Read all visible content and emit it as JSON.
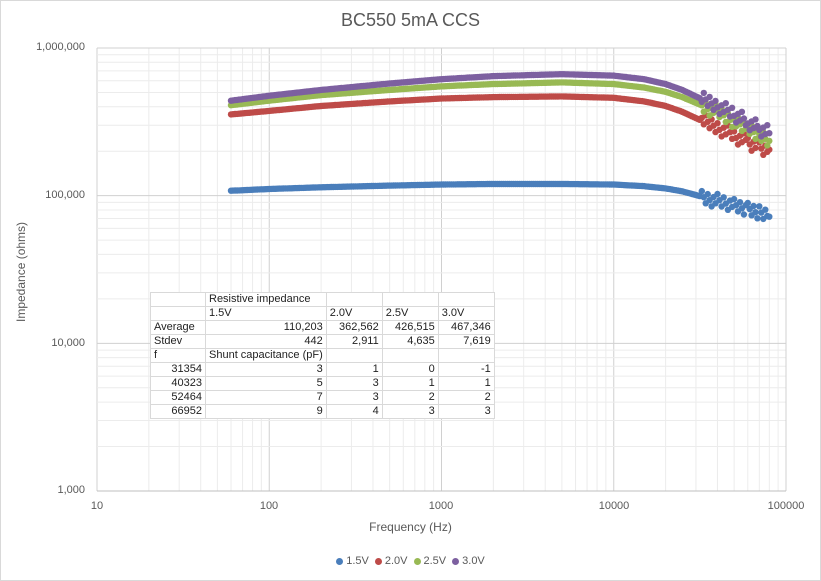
{
  "chart_data": {
    "type": "scatter",
    "title": "BC550 5mA CCS",
    "xlabel": "Frequency (Hz)",
    "ylabel": "Impedance (ohms)",
    "x_scale": "log",
    "y_scale": "log",
    "xlim": [
      10,
      100000
    ],
    "ylim": [
      1000,
      1000000
    ],
    "x_tick_labels": [
      "10",
      "100",
      "1000",
      "10000",
      "100000"
    ],
    "y_tick_labels": [
      "1,000",
      "10,000",
      "100,000",
      "1,000,000"
    ],
    "grid": true,
    "legend_position": "bottom",
    "series": [
      {
        "name": "1.5V",
        "color": "#4a7ebb",
        "x": [
          60,
          100,
          200,
          500,
          1000,
          2000,
          5000,
          10000,
          15000,
          20000,
          25000,
          30000,
          40000,
          50000,
          60000,
          70000,
          80000
        ],
        "y": [
          108000,
          111000,
          114000,
          117000,
          119000,
          120000,
          120000,
          119000,
          116000,
          112000,
          107000,
          101000,
          92000,
          85000,
          80000,
          76000,
          72000
        ]
      },
      {
        "name": "2.0V",
        "color": "#be4b48",
        "x": [
          60,
          100,
          200,
          500,
          1000,
          2000,
          5000,
          10000,
          15000,
          20000,
          25000,
          30000,
          40000,
          50000,
          60000,
          70000,
          80000
        ],
        "y": [
          355000,
          375000,
          405000,
          435000,
          455000,
          465000,
          470000,
          460000,
          435000,
          405000,
          370000,
          335000,
          290000,
          255000,
          230000,
          215000,
          205000
        ]
      },
      {
        "name": "2.5V",
        "color": "#98b954",
        "x": [
          60,
          100,
          200,
          500,
          1000,
          2000,
          5000,
          10000,
          15000,
          20000,
          25000,
          30000,
          40000,
          50000,
          60000,
          70000,
          80000
        ],
        "y": [
          410000,
          440000,
          480000,
          520000,
          550000,
          570000,
          585000,
          570000,
          540000,
          505000,
          465000,
          425000,
          370000,
          320000,
          285000,
          255000,
          235000
        ]
      },
      {
        "name": "3.0V",
        "color": "#7d60a0",
        "x": [
          60,
          100,
          200,
          500,
          1000,
          2000,
          5000,
          10000,
          15000,
          20000,
          25000,
          30000,
          40000,
          50000,
          60000,
          70000,
          80000
        ],
        "y": [
          440000,
          475000,
          520000,
          575000,
          615000,
          645000,
          665000,
          650000,
          615000,
          570000,
          520000,
          470000,
          405000,
          355000,
          315000,
          285000,
          265000
        ]
      }
    ]
  },
  "table": {
    "rows": [
      [
        "",
        "Resistive impedance",
        "",
        "",
        ""
      ],
      [
        "",
        "1.5V",
        "2.0V",
        "2.5V",
        "3.0V"
      ],
      [
        "Average",
        "110,203",
        "362,562",
        "426,515",
        "467,346"
      ],
      [
        "Stdev",
        "442",
        "2,911",
        "4,635",
        "7,619"
      ],
      [
        "f",
        "Shunt capacitance (pF)",
        "",
        "",
        ""
      ],
      [
        "31354",
        "3",
        "1",
        "0",
        "-1"
      ],
      [
        "40323",
        "5",
        "3",
        "1",
        "1"
      ],
      [
        "52464",
        "7",
        "3",
        "2",
        "2"
      ],
      [
        "66952",
        "9",
        "4",
        "3",
        "3"
      ]
    ]
  }
}
